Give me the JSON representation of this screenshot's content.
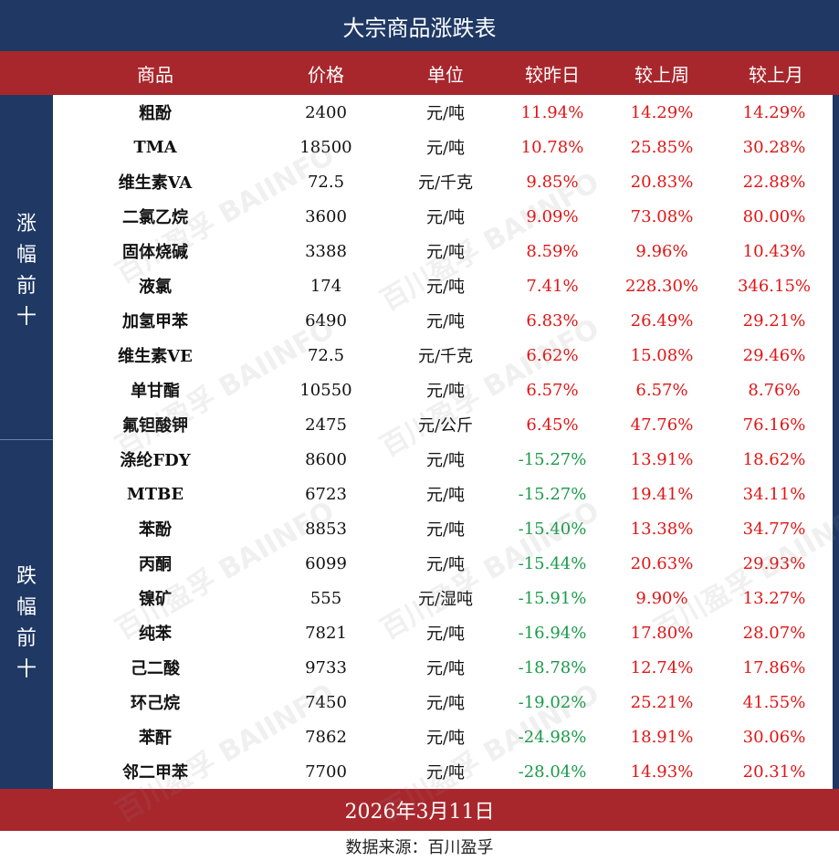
{
  "title": "大宗商品涨跌表",
  "headers": [
    "商品",
    "价格",
    "单位",
    "较昨日",
    "较上周",
    "较上月"
  ],
  "sections": {
    "up_label": [
      "涨",
      "幅",
      "前",
      "十"
    ],
    "down_label": [
      "跌",
      "幅",
      "前",
      "十"
    ]
  },
  "rows": [
    {
      "name": "粗酚",
      "price": "2400",
      "unit": "元/吨",
      "day": "11.94%",
      "week": "14.29%",
      "month": "14.29%"
    },
    {
      "name": "TMA",
      "price": "18500",
      "unit": "元/吨",
      "day": "10.78%",
      "week": "25.85%",
      "month": "30.28%"
    },
    {
      "name": "维生素VA",
      "price": "72.5",
      "unit": "元/千克",
      "day": "9.85%",
      "week": "20.83%",
      "month": "22.88%"
    },
    {
      "name": "二氯乙烷",
      "price": "3600",
      "unit": "元/吨",
      "day": "9.09%",
      "week": "73.08%",
      "month": "80.00%"
    },
    {
      "name": "固体烧碱",
      "price": "3388",
      "unit": "元/吨",
      "day": "8.59%",
      "week": "9.96%",
      "month": "10.43%"
    },
    {
      "name": "液氯",
      "price": "174",
      "unit": "元/吨",
      "day": "7.41%",
      "week": "228.30%",
      "month": "346.15%"
    },
    {
      "name": "加氢甲苯",
      "price": "6490",
      "unit": "元/吨",
      "day": "6.83%",
      "week": "26.49%",
      "month": "29.21%"
    },
    {
      "name": "维生素VE",
      "price": "72.5",
      "unit": "元/千克",
      "day": "6.62%",
      "week": "15.08%",
      "month": "29.46%"
    },
    {
      "name": "单甘酯",
      "price": "10550",
      "unit": "元/吨",
      "day": "6.57%",
      "week": "6.57%",
      "month": "8.76%"
    },
    {
      "name": "氟钽酸钾",
      "price": "2475",
      "unit": "元/公斤",
      "day": "6.45%",
      "week": "47.76%",
      "month": "76.16%"
    },
    {
      "name": "涤纶FDY",
      "price": "8600",
      "unit": "元/吨",
      "day": "-15.27%",
      "week": "13.91%",
      "month": "18.62%"
    },
    {
      "name": "MTBE",
      "price": "6723",
      "unit": "元/吨",
      "day": "-15.27%",
      "week": "19.41%",
      "month": "34.11%"
    },
    {
      "name": "苯酚",
      "price": "8853",
      "unit": "元/吨",
      "day": "-15.40%",
      "week": "13.38%",
      "month": "34.77%"
    },
    {
      "name": "丙酮",
      "price": "6099",
      "unit": "元/吨",
      "day": "-15.44%",
      "week": "20.63%",
      "month": "29.93%"
    },
    {
      "name": "镍矿",
      "price": "555",
      "unit": "元/湿吨",
      "day": "-15.91%",
      "week": "9.90%",
      "month": "13.27%"
    },
    {
      "name": "纯苯",
      "price": "7821",
      "unit": "元/吨",
      "day": "-16.94%",
      "week": "17.80%",
      "month": "28.07%"
    },
    {
      "name": "己二酸",
      "price": "9733",
      "unit": "元/吨",
      "day": "-18.78%",
      "week": "12.74%",
      "month": "17.86%"
    },
    {
      "name": "环己烷",
      "price": "7450",
      "unit": "元/吨",
      "day": "-19.02%",
      "week": "25.21%",
      "month": "41.55%"
    },
    {
      "name": "苯酐",
      "price": "7862",
      "unit": "元/吨",
      "day": "-24.98%",
      "week": "18.91%",
      "month": "30.06%"
    },
    {
      "name": "邻二甲苯",
      "price": "7700",
      "unit": "元/吨",
      "day": "-28.04%",
      "week": "14.93%",
      "month": "20.31%"
    }
  ],
  "date": "2026年3月11日",
  "source": "数据来源：百川盈孚",
  "watermark": {
    "cn": "百川盈孚",
    "en": "BAIINFO"
  },
  "colors": {
    "navy": "#1f3864",
    "red_bar": "#a8272d",
    "positive": "#e01515",
    "negative": "#1a9a4a"
  }
}
